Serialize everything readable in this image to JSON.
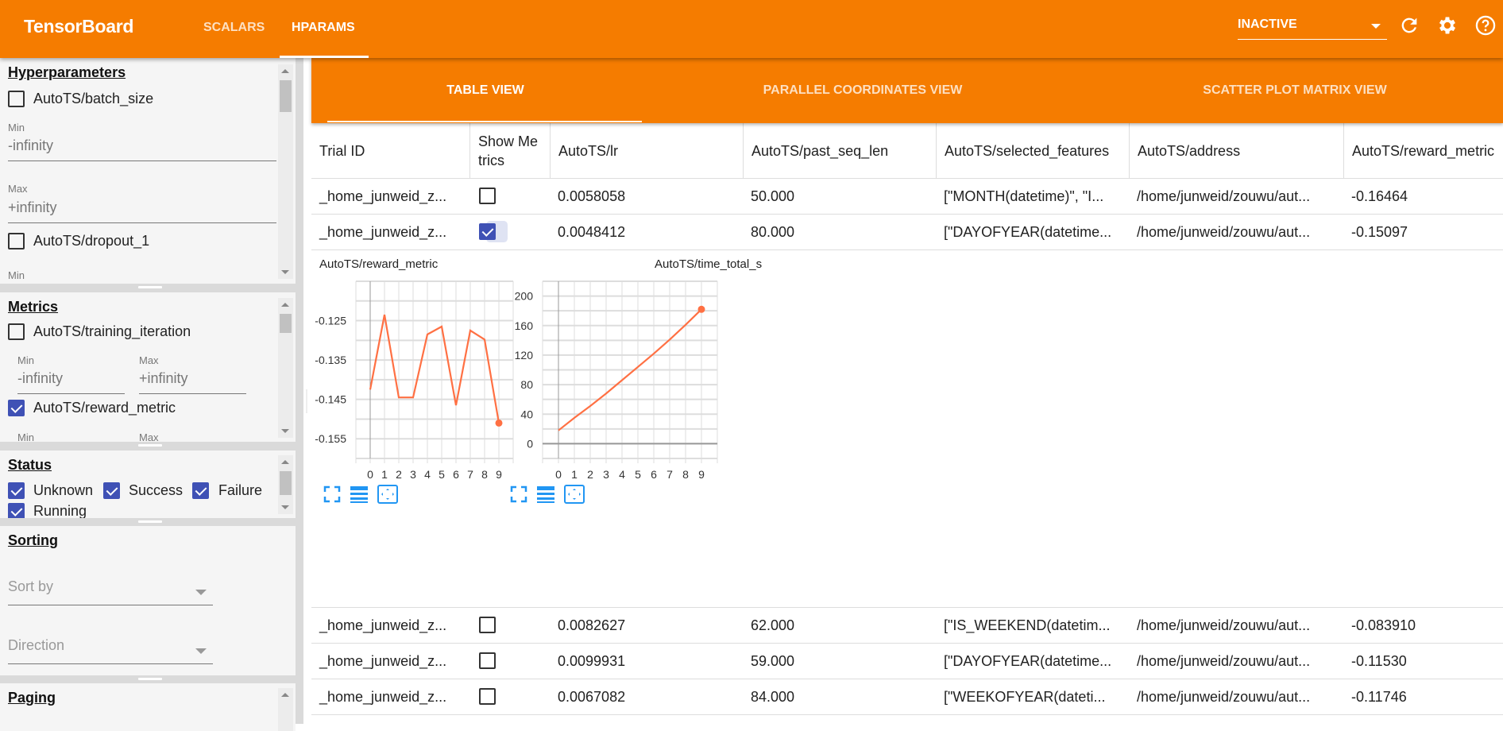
{
  "header": {
    "brand": "TensorBoard",
    "tabs": [
      {
        "label": "SCALARS",
        "active": false
      },
      {
        "label": "HPARAMS",
        "active": true
      }
    ],
    "run_selector": "INACTIVE",
    "icons": [
      "refresh-icon",
      "settings-icon",
      "help-icon"
    ],
    "color": "#f57c00"
  },
  "sidebar": {
    "hyperparameters": {
      "title": "Hyperparameters",
      "items": [
        {
          "label": "AutoTS/batch_size",
          "checked": false,
          "min_label": "Min",
          "min": "-infinity",
          "max_label": "Max",
          "max": "+infinity"
        },
        {
          "label": "AutoTS/dropout_1",
          "checked": false,
          "min_label": "Min"
        }
      ]
    },
    "metrics": {
      "title": "Metrics",
      "items": [
        {
          "label": "AutoTS/training_iteration",
          "checked": false,
          "min_label": "Min",
          "min": "-infinity",
          "max_label": "Max",
          "max": "+infinity"
        },
        {
          "label": "AutoTS/reward_metric",
          "checked": true,
          "min_label": "Min",
          "max_label": "Max"
        }
      ]
    },
    "status": {
      "title": "Status",
      "items": [
        {
          "label": "Unknown",
          "checked": true
        },
        {
          "label": "Success",
          "checked": true
        },
        {
          "label": "Failure",
          "checked": true
        },
        {
          "label": "Running",
          "checked": true
        }
      ]
    },
    "sorting": {
      "title": "Sorting",
      "sort_by": "Sort by",
      "direction": "Direction"
    },
    "paging": {
      "title": "Paging"
    }
  },
  "views": {
    "tabs": [
      {
        "label": "TABLE VIEW",
        "active": true
      },
      {
        "label": "PARALLEL COORDINATES VIEW",
        "active": false
      },
      {
        "label": "SCATTER PLOT MATRIX VIEW",
        "active": false
      }
    ]
  },
  "table": {
    "columns": [
      "Trial ID",
      "Show Metrics",
      "AutoTS/lr",
      "AutoTS/past_seq_len",
      "AutoTS/selected_features",
      "AutoTS/address",
      "AutoTS/reward_metric"
    ],
    "rows_top": [
      {
        "trial": "_home_junweid_z...",
        "show": false,
        "lr": "0.0058058",
        "past": "50.000",
        "features": "[\"MONTH(datetime)\", \"I...",
        "address": "/home/junweid/zouwu/aut...",
        "reward": "-0.16464"
      },
      {
        "trial": "_home_junweid_z...",
        "show": true,
        "lr": "0.0048412",
        "past": "80.000",
        "features": "[\"DAYOFYEAR(datetime...",
        "address": "/home/junweid/zouwu/aut...",
        "reward": "-0.15097"
      }
    ],
    "rows_bottom": [
      {
        "trial": "_home_junweid_z...",
        "show": false,
        "lr": "0.0082627",
        "past": "62.000",
        "features": "[\"IS_WEEKEND(datetim...",
        "address": "/home/junweid/zouwu/aut...",
        "reward": "-0.083910"
      },
      {
        "trial": "_home_junweid_z...",
        "show": false,
        "lr": "0.0099931",
        "past": "59.000",
        "features": "[\"DAYOFYEAR(datetime...",
        "address": "/home/junweid/zouwu/aut...",
        "reward": "-0.11530"
      },
      {
        "trial": "_home_junweid_z...",
        "show": false,
        "lr": "0.0067082",
        "past": "84.000",
        "features": "[\"WEEKOFYEAR(dateti...",
        "address": "/home/junweid/zouwu/aut...",
        "reward": "-0.11746"
      }
    ]
  },
  "chart_data": [
    {
      "type": "line",
      "title": "AutoTS/reward_metric",
      "x": [
        0,
        1,
        2,
        3,
        4,
        5,
        6,
        7,
        8,
        9
      ],
      "values": [
        -0.1425,
        -0.1235,
        -0.1445,
        -0.1445,
        -0.1285,
        -0.1265,
        -0.1465,
        -0.1275,
        -0.1298,
        -0.151
      ],
      "xlim": [
        -1,
        10
      ],
      "ylim": [
        -0.16,
        -0.115
      ],
      "xticks": [
        "0",
        "1",
        "2",
        "3",
        "4",
        "5",
        "6",
        "7",
        "8",
        "9"
      ],
      "yticks": [
        "-0.125",
        "-0.135",
        "-0.145",
        "-0.155"
      ],
      "grid": true,
      "color": "#ff7043"
    },
    {
      "type": "line",
      "title": "AutoTS/time_total_s",
      "x": [
        0,
        1,
        2,
        3,
        4,
        5,
        6,
        7,
        8,
        9
      ],
      "values": [
        18,
        35,
        51,
        68,
        86,
        104,
        122,
        141,
        161,
        182
      ],
      "xlim": [
        -1,
        10
      ],
      "ylim": [
        -20,
        220
      ],
      "xticks": [
        "0",
        "1",
        "2",
        "3",
        "4",
        "5",
        "6",
        "7",
        "8",
        "9"
      ],
      "yticks": [
        "0",
        "40",
        "80",
        "120",
        "160",
        "200"
      ],
      "grid": true,
      "color": "#ff7043"
    }
  ],
  "chart_icons": [
    "fullscreen-icon",
    "data-table-icon",
    "fit-domain-icon"
  ]
}
